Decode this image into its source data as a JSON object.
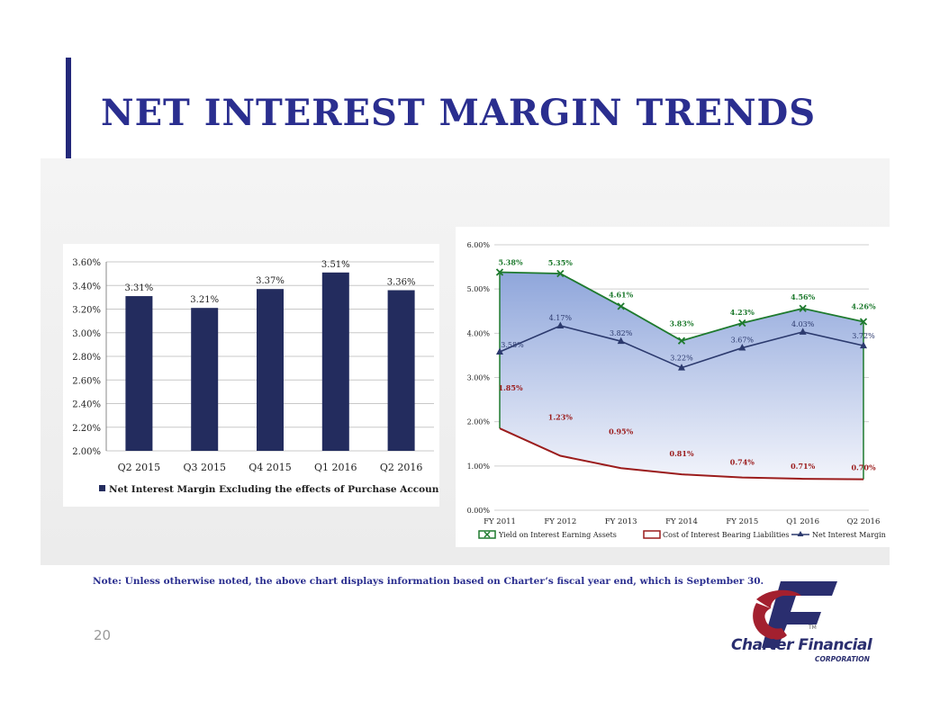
{
  "header": {
    "title": "NET INTEREST MARGIN TRENDS"
  },
  "footer": {
    "note": "Note:  Unless otherwise noted, the above chart displays information based on Charter’s fiscal year end, which is September 30.",
    "page_number": "20"
  },
  "logo": {
    "name": "Charter Financial",
    "sub": "CORPORATION",
    "tm": "TM"
  },
  "colors": {
    "navy": "#232c5e",
    "title": "#2a2e8f",
    "yield": "#1e7a2e",
    "cost": "#9b1c1c",
    "nim": "#2c3a6e",
    "fill_top": "#8fa6db",
    "fill_bottom": "#f2f4fb"
  },
  "chart_data": [
    {
      "type": "bar",
      "categories": [
        "Q2 2015",
        "Q3 2015",
        "Q4 2015",
        "Q1 2016",
        "Q2 2016"
      ],
      "series": [
        {
          "name": "Net Interest Margin Excluding the effects of Purchase Accounting",
          "values": [
            3.31,
            3.21,
            3.37,
            3.51,
            3.36
          ]
        }
      ],
      "data_labels": [
        "3.31%",
        "3.21%",
        "3.37%",
        "3.51%",
        "3.36%"
      ],
      "ylim": [
        2.0,
        3.6
      ],
      "yticks": [
        "2.00%",
        "2.20%",
        "2.40%",
        "2.60%",
        "2.80%",
        "3.00%",
        "3.20%",
        "3.40%",
        "3.60%"
      ],
      "grid": true,
      "legend": "bottom"
    },
    {
      "type": "line",
      "categories": [
        "FY 2011",
        "FY 2012",
        "FY 2013",
        "FY 2014",
        "FY 2015",
        "Q1 2016",
        "Q2 2016"
      ],
      "series": [
        {
          "name": "Yield on Interest Earning Assets",
          "values": [
            5.38,
            5.35,
            4.61,
            3.83,
            4.23,
            4.56,
            4.26
          ],
          "labels": [
            "5.38%",
            "5.35%",
            "4.61%",
            "3.83%",
            "4.23%",
            "4.56%",
            "4.26%"
          ]
        },
        {
          "name": "Cost of Interest Bearing Liabilities",
          "values": [
            1.85,
            1.23,
            0.95,
            0.81,
            0.74,
            0.71,
            0.7
          ],
          "labels": [
            "1.85%",
            "1.23%",
            "0.95%",
            "0.81%",
            "0.74%",
            "0.71%",
            "0.70%"
          ]
        },
        {
          "name": "Net Interest Margin",
          "values": [
            3.58,
            4.17,
            3.82,
            3.22,
            3.67,
            4.03,
            3.72
          ],
          "labels": [
            "3.58%",
            "4.17%",
            "3.82%",
            "3.22%",
            "3.67%",
            "4.03%",
            "3.72%"
          ]
        }
      ],
      "ylim": [
        0,
        6
      ],
      "yticks": [
        "0.00%",
        "1.00%",
        "2.00%",
        "3.00%",
        "4.00%",
        "5.00%",
        "6.00%"
      ],
      "grid": true,
      "legend": "bottom"
    }
  ]
}
